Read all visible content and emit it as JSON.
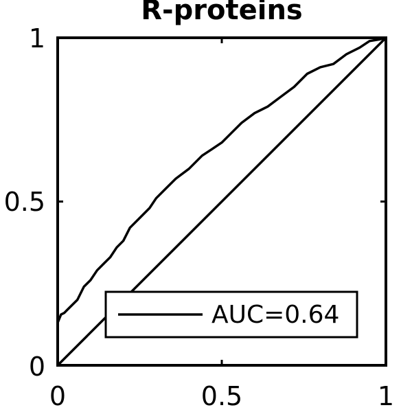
{
  "chart_data": {
    "type": "line",
    "title": "R-proteins",
    "xlabel": "",
    "ylabel": "",
    "xlim": [
      0,
      1
    ],
    "ylim": [
      0,
      1
    ],
    "x_ticks": [
      "0",
      "0.5",
      "1"
    ],
    "y_ticks": [
      "0",
      "0.5",
      "1"
    ],
    "grid": false,
    "legend_position": "bottom-right",
    "series": [
      {
        "name": "AUC=0.64",
        "color": "#000000",
        "x": [
          0,
          0.01,
          0.02,
          0.03,
          0.04,
          0.05,
          0.06,
          0.08,
          0.1,
          0.12,
          0.14,
          0.16,
          0.18,
          0.2,
          0.22,
          0.25,
          0.28,
          0.3,
          0.33,
          0.36,
          0.4,
          0.44,
          0.47,
          0.5,
          0.53,
          0.56,
          0.6,
          0.64,
          0.68,
          0.72,
          0.76,
          0.8,
          0.84,
          0.88,
          0.92,
          0.95,
          0.98,
          1.0
        ],
        "y": [
          0.13,
          0.155,
          0.16,
          0.17,
          0.18,
          0.19,
          0.2,
          0.24,
          0.26,
          0.29,
          0.31,
          0.33,
          0.36,
          0.38,
          0.42,
          0.45,
          0.48,
          0.51,
          0.54,
          0.57,
          0.6,
          0.64,
          0.66,
          0.68,
          0.71,
          0.74,
          0.77,
          0.79,
          0.82,
          0.85,
          0.89,
          0.91,
          0.92,
          0.95,
          0.97,
          0.99,
          0.995,
          1.0
        ]
      },
      {
        "name": "",
        "color": "#000000",
        "x": [
          0,
          1
        ],
        "y": [
          0,
          1
        ]
      }
    ]
  }
}
